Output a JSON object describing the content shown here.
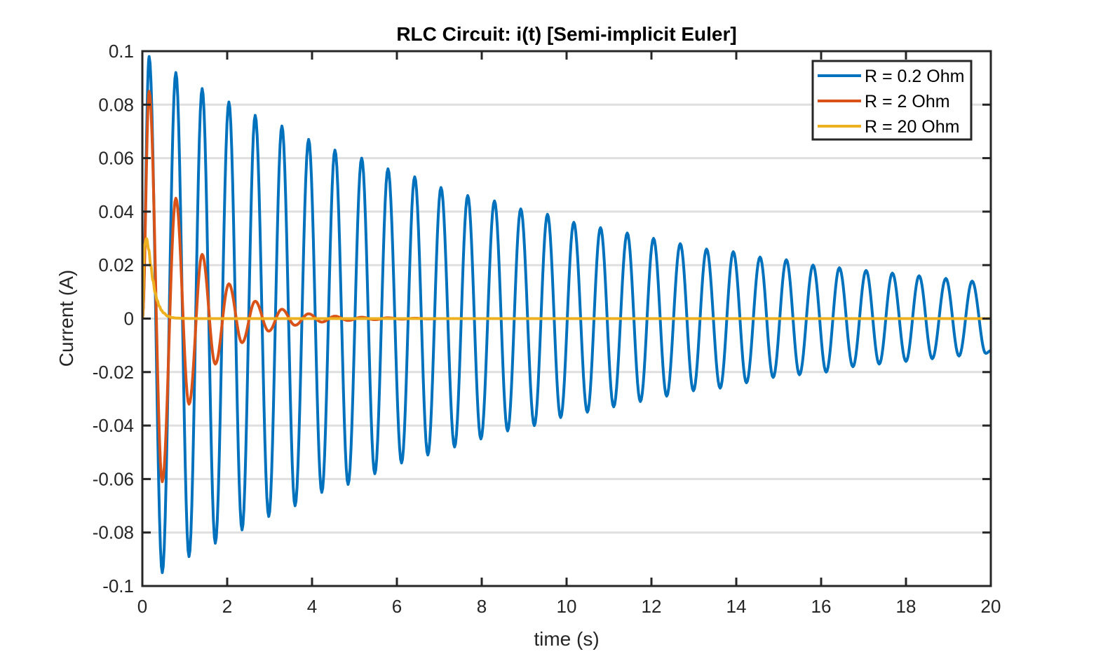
{
  "chart_data": {
    "type": "line",
    "title": "RLC Circuit: i(t) [Semi-implicit Euler]",
    "xlabel": "time (s)",
    "ylabel": "Current (A)",
    "xlim": [
      0,
      20
    ],
    "ylim": [
      -0.1,
      0.1
    ],
    "xticks": [
      0,
      2,
      4,
      6,
      8,
      10,
      12,
      14,
      16,
      18,
      20
    ],
    "xtick_labels": [
      "0",
      "2",
      "4",
      "6",
      "8",
      "10",
      "12",
      "14",
      "16",
      "18",
      "20"
    ],
    "yticks": [
      -0.1,
      -0.08,
      -0.06,
      -0.04,
      -0.02,
      0,
      0.02,
      0.04,
      0.06,
      0.08,
      0.1
    ],
    "ytick_labels": [
      "-0.1",
      "-0.08",
      "-0.06",
      "-0.04",
      "-0.02",
      "0",
      "0.02",
      "0.04",
      "0.06",
      "0.08",
      "0.1"
    ],
    "grid": "horizontal",
    "legend_position": "top-right",
    "series": [
      {
        "name": "R = 0.2 Ohm",
        "color": "#0072BD",
        "x": [
          0,
          0.16,
          0.47,
          0.79,
          1.1,
          1.41,
          1.72,
          2.04,
          2.35,
          2.66,
          2.98,
          3.29,
          3.6,
          3.92,
          4.23,
          4.54,
          4.85,
          5.17,
          5.48,
          5.79,
          6.11,
          6.42,
          6.73,
          7.04,
          7.36,
          7.67,
          7.98,
          8.3,
          8.61,
          8.92,
          9.24,
          9.55,
          9.86,
          10.17,
          10.49,
          10.8,
          11.11,
          11.43,
          11.74,
          12.05,
          12.36,
          12.68,
          12.99,
          13.3,
          13.62,
          13.93,
          14.24,
          14.56,
          14.87,
          15.18,
          15.49,
          15.81,
          16.12,
          16.43,
          16.75,
          17.06,
          17.37,
          17.68,
          18.0,
          18.31,
          18.62,
          18.94,
          19.25,
          19.56,
          19.88,
          20
        ],
        "y": [
          0,
          0.098,
          -0.095,
          0.092,
          -0.089,
          0.086,
          -0.084,
          0.081,
          -0.079,
          0.076,
          -0.074,
          0.072,
          -0.07,
          0.067,
          -0.065,
          0.063,
          -0.062,
          0.06,
          -0.058,
          0.056,
          -0.054,
          0.053,
          -0.051,
          0.049,
          -0.048,
          0.046,
          -0.045,
          0.044,
          -0.042,
          0.041,
          -0.04,
          0.039,
          -0.037,
          0.036,
          -0.035,
          0.034,
          -0.033,
          0.032,
          -0.031,
          0.03,
          -0.029,
          0.028,
          -0.027,
          0.026,
          -0.026,
          0.025,
          -0.024,
          0.023,
          -0.022,
          0.022,
          -0.021,
          0.02,
          -0.02,
          0.019,
          -0.018,
          0.018,
          -0.017,
          0.017,
          -0.016,
          0.016,
          -0.015,
          0.015,
          -0.014,
          0.014,
          -0.013,
          -0.012
        ]
      },
      {
        "name": "R = 2 Ohm",
        "color": "#D95319",
        "x": [
          0,
          0.16,
          0.47,
          0.79,
          1.1,
          1.41,
          1.72,
          2.04,
          2.35,
          2.66,
          2.98,
          3.29,
          3.6,
          3.92,
          4.23,
          4.54,
          4.85,
          5.17,
          5.48,
          5.79,
          6.11,
          6.42,
          6.73,
          7.04,
          8,
          10,
          12,
          14,
          16,
          18,
          20
        ],
        "y": [
          0,
          0.085,
          -0.061,
          0.045,
          -0.032,
          0.024,
          -0.017,
          0.013,
          -0.009,
          0.0065,
          -0.0047,
          0.0035,
          -0.0025,
          0.0018,
          -0.0013,
          0.0009,
          -0.0007,
          0.0005,
          -0.0004,
          0.0003,
          -0.0002,
          0.00015,
          -0.0001,
          0,
          0,
          0,
          0,
          0,
          0,
          0,
          0
        ]
      },
      {
        "name": "R = 20 Ohm",
        "color": "#EDB120",
        "x": [
          0,
          0.05,
          0.1,
          0.15,
          0.2,
          0.25,
          0.3,
          0.35,
          0.4,
          0.45,
          0.5,
          0.6,
          0.7,
          0.8,
          1.0,
          1.5,
          2,
          4,
          6,
          8,
          10,
          12,
          14,
          16,
          18,
          20
        ],
        "y": [
          0,
          0.0275,
          0.0299,
          0.0258,
          0.0197,
          0.0143,
          0.0098,
          0.0068,
          0.0046,
          0.0031,
          0.0021,
          0.0009,
          0.0004,
          0.0002,
          5e-05,
          0,
          0,
          0,
          0,
          0,
          0,
          0,
          0,
          0,
          0,
          0
        ]
      }
    ]
  }
}
